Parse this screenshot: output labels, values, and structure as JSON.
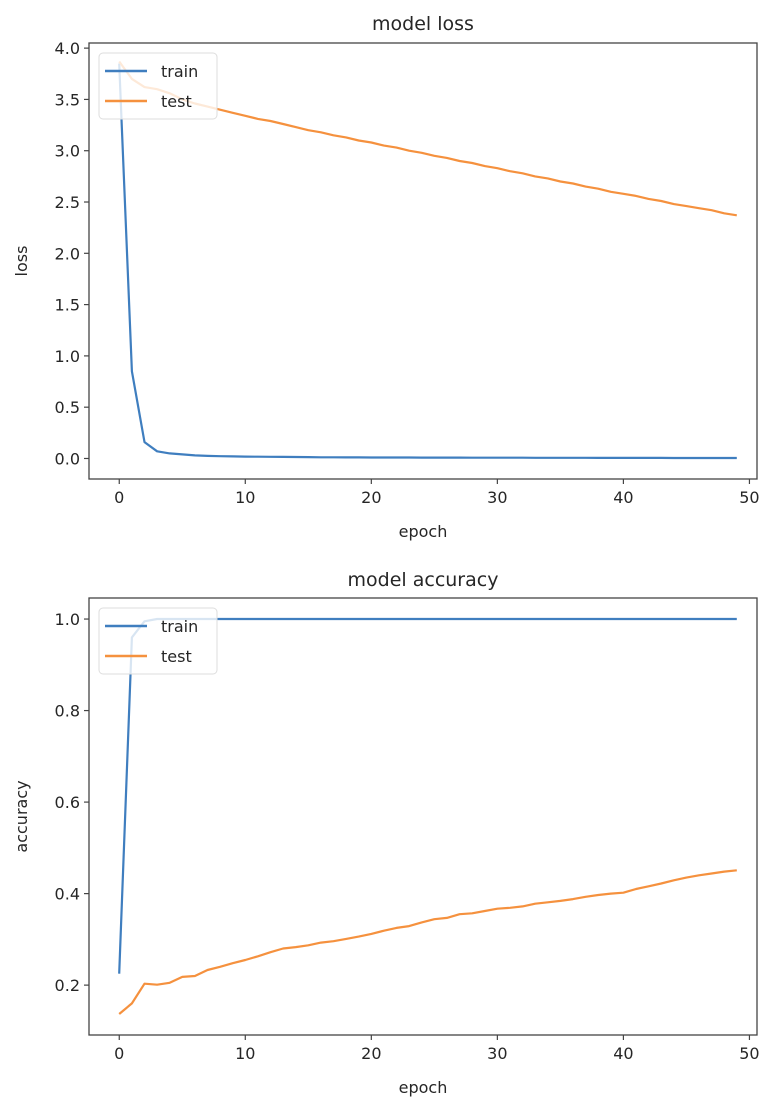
{
  "colors": {
    "train": "#3f7ebf",
    "test": "#f5913e",
    "axis": "#444444"
  },
  "chart_data": [
    {
      "type": "line",
      "title": "model loss",
      "xlabel": "epoch",
      "ylabel": "loss",
      "xlim": [
        -2.4,
        50.6
      ],
      "ylim": [
        -0.2,
        4.05
      ],
      "xticks": [
        0,
        10,
        20,
        30,
        40,
        50
      ],
      "xtick_labels": [
        "0",
        "10",
        "20",
        "30",
        "40",
        "50"
      ],
      "yticks": [
        0.0,
        0.5,
        1.0,
        1.5,
        2.0,
        2.5,
        3.0,
        3.5,
        4.0
      ],
      "ytick_labels": [
        "0.0",
        "0.5",
        "1.0",
        "1.5",
        "2.0",
        "2.5",
        "3.0",
        "3.5",
        "4.0"
      ],
      "legend": {
        "placement": "upper-left",
        "entries": [
          "train",
          "test"
        ]
      },
      "series": [
        {
          "name": "train",
          "values": [
            3.85,
            0.85,
            0.16,
            0.07,
            0.05,
            0.04,
            0.03,
            0.025,
            0.022,
            0.02,
            0.018,
            0.017,
            0.016,
            0.015,
            0.014,
            0.013,
            0.012,
            0.012,
            0.011,
            0.011,
            0.01,
            0.01,
            0.01,
            0.01,
            0.009,
            0.009,
            0.009,
            0.009,
            0.008,
            0.008,
            0.008,
            0.008,
            0.008,
            0.007,
            0.007,
            0.007,
            0.007,
            0.007,
            0.006,
            0.006,
            0.006,
            0.006,
            0.006,
            0.006,
            0.005,
            0.005,
            0.005,
            0.005,
            0.005,
            0.005
          ]
        },
        {
          "name": "test",
          "values": [
            3.87,
            3.7,
            3.62,
            3.6,
            3.56,
            3.5,
            3.46,
            3.43,
            3.4,
            3.37,
            3.34,
            3.31,
            3.29,
            3.26,
            3.23,
            3.2,
            3.18,
            3.15,
            3.13,
            3.1,
            3.08,
            3.05,
            3.03,
            3.0,
            2.98,
            2.95,
            2.93,
            2.9,
            2.88,
            2.85,
            2.83,
            2.8,
            2.78,
            2.75,
            2.73,
            2.7,
            2.68,
            2.65,
            2.63,
            2.6,
            2.58,
            2.56,
            2.53,
            2.51,
            2.48,
            2.46,
            2.44,
            2.42,
            2.39,
            2.37
          ]
        }
      ]
    },
    {
      "type": "line",
      "title": "model accuracy",
      "xlabel": "epoch",
      "ylabel": "accuracy",
      "xlim": [
        -2.4,
        50.6
      ],
      "ylim": [
        0.091,
        1.046
      ],
      "xticks": [
        0,
        10,
        20,
        30,
        40,
        50
      ],
      "xtick_labels": [
        "0",
        "10",
        "20",
        "30",
        "40",
        "50"
      ],
      "yticks": [
        0.2,
        0.4,
        0.6,
        0.8,
        1.0
      ],
      "ytick_labels": [
        "0.2",
        "0.4",
        "0.6",
        "0.8",
        "1.0"
      ],
      "legend": {
        "placement": "upper-left",
        "entries": [
          "train",
          "test"
        ]
      },
      "series": [
        {
          "name": "train",
          "values": [
            0.225,
            0.96,
            0.995,
            1.0,
            1.0,
            1.0,
            1.0,
            1.0,
            1.0,
            1.0,
            1.0,
            1.0,
            1.0,
            1.0,
            1.0,
            1.0,
            1.0,
            1.0,
            1.0,
            1.0,
            1.0,
            1.0,
            1.0,
            1.0,
            1.0,
            1.0,
            1.0,
            1.0,
            1.0,
            1.0,
            1.0,
            1.0,
            1.0,
            1.0,
            1.0,
            1.0,
            1.0,
            1.0,
            1.0,
            1.0,
            1.0,
            1.0,
            1.0,
            1.0,
            1.0,
            1.0,
            1.0,
            1.0,
            1.0,
            1.0
          ]
        },
        {
          "name": "test",
          "values": [
            0.137,
            0.16,
            0.203,
            0.201,
            0.205,
            0.218,
            0.22,
            0.233,
            0.24,
            0.248,
            0.255,
            0.263,
            0.272,
            0.28,
            0.283,
            0.287,
            0.293,
            0.296,
            0.301,
            0.306,
            0.312,
            0.319,
            0.325,
            0.329,
            0.337,
            0.344,
            0.347,
            0.355,
            0.357,
            0.362,
            0.367,
            0.369,
            0.372,
            0.378,
            0.381,
            0.384,
            0.388,
            0.393,
            0.397,
            0.4,
            0.402,
            0.41,
            0.416,
            0.422,
            0.429,
            0.435,
            0.44,
            0.444,
            0.448,
            0.451
          ]
        }
      ]
    }
  ]
}
